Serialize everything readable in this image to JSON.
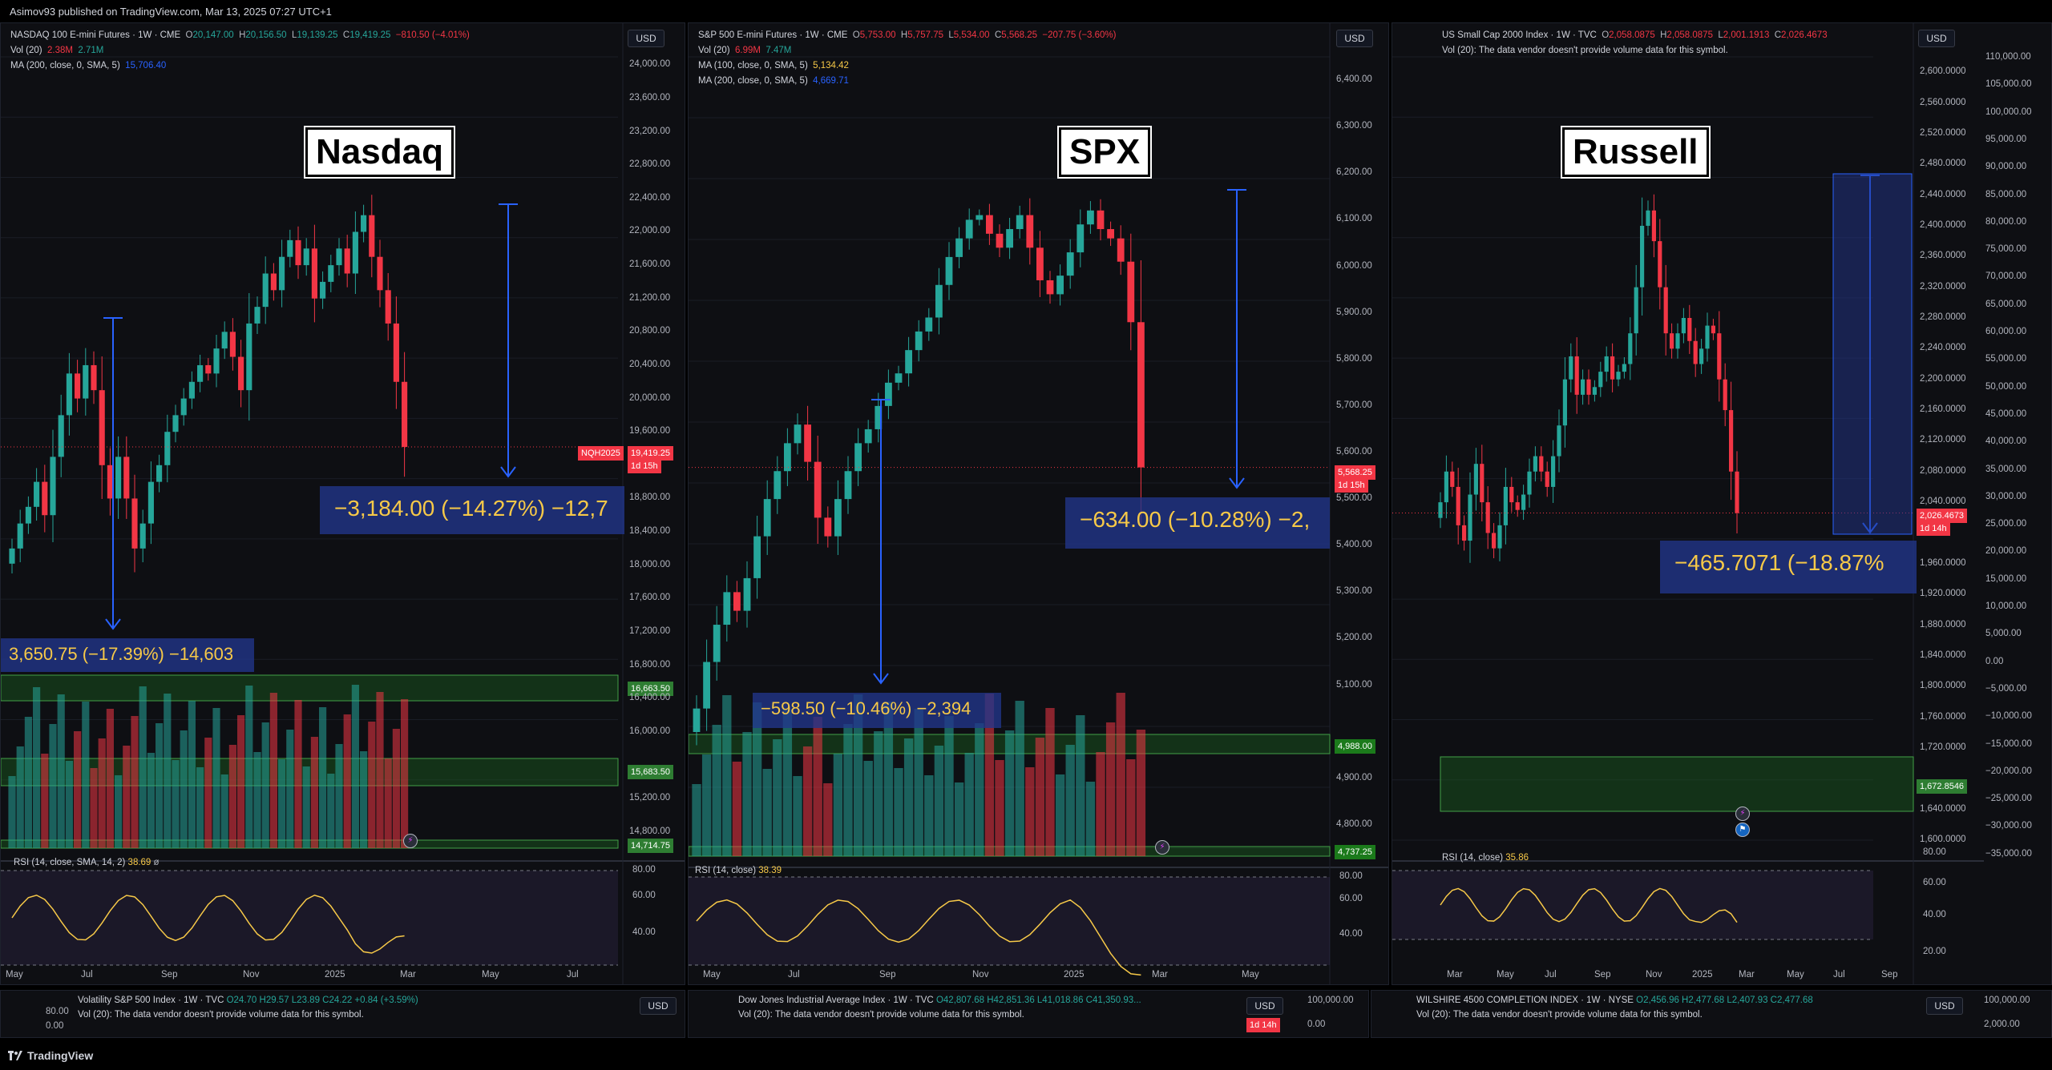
{
  "header": {
    "publish_note": "Asimov93 published on TradingView.com, Mar 13, 2025 07:27 UTC+1"
  },
  "footer": {
    "brand": "TradingView"
  },
  "colors": {
    "up": "#26a69a",
    "down": "#f23645",
    "bg": "#0e0f13",
    "measure": "#213690",
    "accent_yellow": "#f7c948",
    "zone_green": "#1b5e20"
  },
  "panels": [
    {
      "id": "nasdaq",
      "label": "Nasdaq",
      "currency": "USD",
      "legend_title": "NASDAQ 100 E-mini Futures · 1W · CME",
      "ohlc": {
        "o": "20,147.00",
        "h": "20,156.50",
        "l": "19,139.25",
        "c": "19,419.25",
        "chg": "−810.50 (−4.01%)"
      },
      "vol_label": "Vol (20)",
      "vol_a": "2.38M",
      "vol_b": "2.71M",
      "ma_lines": [
        {
          "label": "MA (200, close, 0, SMA, 5)",
          "value": "15,706.40"
        }
      ],
      "last_price_tag": "19,419.25",
      "last_price_sub": "1d 15h",
      "symbol_tag": "NQH2025",
      "measure_main": "−3,184.00 (−14.27%) −12,7",
      "measure_secondary": "3,650.75 (−17.39%) −14,603",
      "level_tags": [
        "16,663.50",
        "15,683.50",
        "14,714.75"
      ],
      "y_axis": [
        "24,000.00",
        "23,600.00",
        "23,200.00",
        "22,800.00",
        "22,400.00",
        "22,000.00",
        "21,600.00",
        "21,200.00",
        "20,800.00",
        "20,400.00",
        "20,000.00",
        "19,600.00",
        "18,800.00",
        "18,400.00",
        "18,000.00",
        "17,600.00",
        "17,200.00",
        "16,800.00",
        "16,400.00",
        "16,000.00",
        "15,200.00",
        "14,800.00"
      ],
      "rsi_label": "RSI (14, close, SMA, 14, 2)",
      "rsi_value": "38.69",
      "rsi_axis": [
        "80.00",
        "60.00",
        "40.00"
      ],
      "x_axis": [
        "May",
        "Jul",
        "Sep",
        "Nov",
        "2025",
        "Mar",
        "May",
        "Jul"
      ]
    },
    {
      "id": "spx",
      "label": "SPX",
      "currency": "USD",
      "legend_title": "S&P 500 E-mini Futures · 1W · CME",
      "ohlc": {
        "o": "5,753.00",
        "h": "5,757.75",
        "l": "5,534.00",
        "c": "5,568.25",
        "chg": "−207.75 (−3.60%)"
      },
      "vol_label": "Vol (20)",
      "vol_a": "6.99M",
      "vol_b": "7.47M",
      "ma_lines": [
        {
          "label": "MA (100, close, 0, SMA, 5)",
          "value": "5,134.42"
        },
        {
          "label": "MA (200, close, 0, SMA, 5)",
          "value": "4,669.71"
        }
      ],
      "last_price_tag": "5,568.25",
      "last_price_sub": "1d 15h",
      "measure_main": "−634.00 (−10.28%) −2,",
      "measure_secondary": "−598.50 (−10.46%) −2,394",
      "level_tags": [
        "4,988.00",
        "4,737.25"
      ],
      "y_axis": [
        "6,400.00",
        "6,300.00",
        "6,200.00",
        "6,100.00",
        "6,000.00",
        "5,900.00",
        "5,800.00",
        "5,700.00",
        "5,600.00",
        "5,500.00",
        "5,400.00",
        "5,300.00",
        "5,200.00",
        "5,100.00",
        "4,900.00",
        "4,800.00"
      ],
      "rsi_label": "RSI (14, close)",
      "rsi_value": "38.39",
      "rsi_axis": [
        "80.00",
        "60.00",
        "40.00"
      ],
      "x_axis": [
        "May",
        "Jul",
        "Sep",
        "Nov",
        "2025",
        "Mar",
        "May"
      ]
    },
    {
      "id": "russell",
      "label": "Russell",
      "currency": "USD",
      "legend_title": "US Small Cap 2000 Index · 1W · TVC",
      "ohlc": {
        "o": "2,058.0875",
        "h": "2,058.0875",
        "l": "2,001.1913",
        "c": "2,026.4673",
        "chg": ""
      },
      "vol_label": "Vol (20):",
      "vol_note": "The data vendor doesn't provide volume data for this symbol.",
      "last_price_tag": "2,026.4673",
      "last_price_sub": "1d 14h",
      "measure_main": "−465.7071 (−18.87%",
      "level_tags": [
        "1,672.8546"
      ],
      "y_axis": [
        "2,600.0000",
        "2,560.0000",
        "2,520.0000",
        "2,480.0000",
        "2,440.0000",
        "2,400.0000",
        "2,360.0000",
        "2,320.0000",
        "2,280.0000",
        "2,240.0000",
        "2,200.0000",
        "2,160.0000",
        "2,120.0000",
        "2,080.0000",
        "2,040.0000",
        "1,960.0000",
        "1,920.0000",
        "1,880.0000",
        "1,840.0000",
        "1,800.0000",
        "1,760.0000",
        "1,720.0000",
        "1,640.0000",
        "1,600.0000"
      ],
      "y_axis_right": [
        "110,000.00",
        "105,000.00",
        "100,000.00",
        "95,000.00",
        "90,000.00",
        "85,000.00",
        "80,000.00",
        "75,000.00",
        "70,000.00",
        "65,000.00",
        "60,000.00",
        "55,000.00",
        "50,000.00",
        "45,000.00",
        "40,000.00",
        "35,000.00",
        "30,000.00",
        "25,000.00",
        "20,000.00",
        "15,000.00",
        "10,000.00",
        "5,000.00",
        "0.00",
        "−5,000.00",
        "−10,000.00",
        "−15,000.00",
        "−20,000.00",
        "−25,000.00",
        "−30,000.00",
        "−35,000.00"
      ],
      "rsi_label": "RSI (14, close)",
      "rsi_value": "35.86",
      "rsi_axis": [
        "80.00",
        "60.00",
        "40.00",
        "20.00"
      ],
      "x_axis": [
        "Mar",
        "May",
        "Jul",
        "Sep",
        "Nov",
        "2025",
        "Mar",
        "May",
        "Jul",
        "Sep"
      ]
    }
  ],
  "mini_panels": [
    {
      "title": "Volatility S&P 500 Index · 1W · TVC",
      "ohlc": "O24.70 H29.57 L23.89 C24.22 +0.84 (+3.59%)",
      "vol_note": "Vol (20): The data vendor doesn't provide volume data for this symbol.",
      "axis_top": "80.00",
      "axis_mid": "0.00",
      "currency": "USD"
    },
    {
      "title": "Dow Jones Industrial Average Index · 1W · TVC",
      "ohlc": "O42,807.68 H42,851.36 L41,018.86 C41,350.93...",
      "vol_note": "Vol (20): The data vendor doesn't provide volume data for this symbol.",
      "axis_top": "100,000.00",
      "axis_mid": "0.00",
      "currency": "USD",
      "time_tag": "1d 14h"
    },
    {
      "title": "WILSHIRE 4500 COMPLETION INDEX · 1W · NYSE",
      "ohlc": "O2,456.96 H2,477.68 L2,407.93 C2,477.68",
      "vol_note": "Vol (20): The data vendor doesn't provide volume data for this symbol.",
      "axis_top": "100,000.00",
      "axis_mid": "2,000.00",
      "currency": "USD"
    }
  ],
  "chart_data": [
    {
      "type": "candlestick",
      "title": "NASDAQ 100 E-mini Futures · 1W · CME",
      "ylim": [
        14700,
        24100
      ],
      "closes": [
        18200,
        18500,
        18700,
        19000,
        18600,
        19300,
        19800,
        20300,
        20000,
        20400,
        20100,
        19200,
        18800,
        19300,
        18800,
        18200,
        18500,
        19000,
        19200,
        19600,
        19800,
        20000,
        20200,
        20400,
        20300,
        20600,
        20800,
        20500,
        20100,
        20900,
        21100,
        21500,
        21300,
        21700,
        21900,
        21600,
        21800,
        21200,
        21400,
        21600,
        21800,
        21500,
        22000,
        22200,
        21700,
        21300,
        20900,
        20200,
        19419
      ]
    },
    {
      "type": "candlestick",
      "title": "S&P 500 E-mini Futures · 1W · CME",
      "ylim": [
        4750,
        6450
      ],
      "closes": [
        5050,
        5150,
        5230,
        5300,
        5260,
        5330,
        5420,
        5500,
        5560,
        5620,
        5660,
        5580,
        5460,
        5420,
        5500,
        5560,
        5620,
        5650,
        5700,
        5750,
        5770,
        5820,
        5860,
        5890,
        5960,
        6020,
        6060,
        6100,
        6110,
        6070,
        6040,
        6080,
        6110,
        6040,
        5970,
        5940,
        5980,
        6030,
        6090,
        6120,
        6080,
        6060,
        6010,
        5880,
        5568
      ]
    },
    {
      "type": "candlestick",
      "title": "US Small Cap 2000 Index · 1W · TVC",
      "ylim": [
        1600,
        2620
      ],
      "closes": [
        2040,
        2080,
        2060,
        2010,
        1990,
        2050,
        2090,
        2040,
        2000,
        1980,
        2010,
        2060,
        2040,
        2030,
        2050,
        2080,
        2100,
        2080,
        2060,
        2100,
        2140,
        2200,
        2230,
        2180,
        2200,
        2180,
        2190,
        2210,
        2230,
        2200,
        2210,
        2220,
        2260,
        2320,
        2400,
        2420,
        2380,
        2320,
        2260,
        2240,
        2260,
        2280,
        2250,
        2220,
        2240,
        2270,
        2260,
        2200,
        2160,
        2080,
        2026
      ]
    }
  ]
}
